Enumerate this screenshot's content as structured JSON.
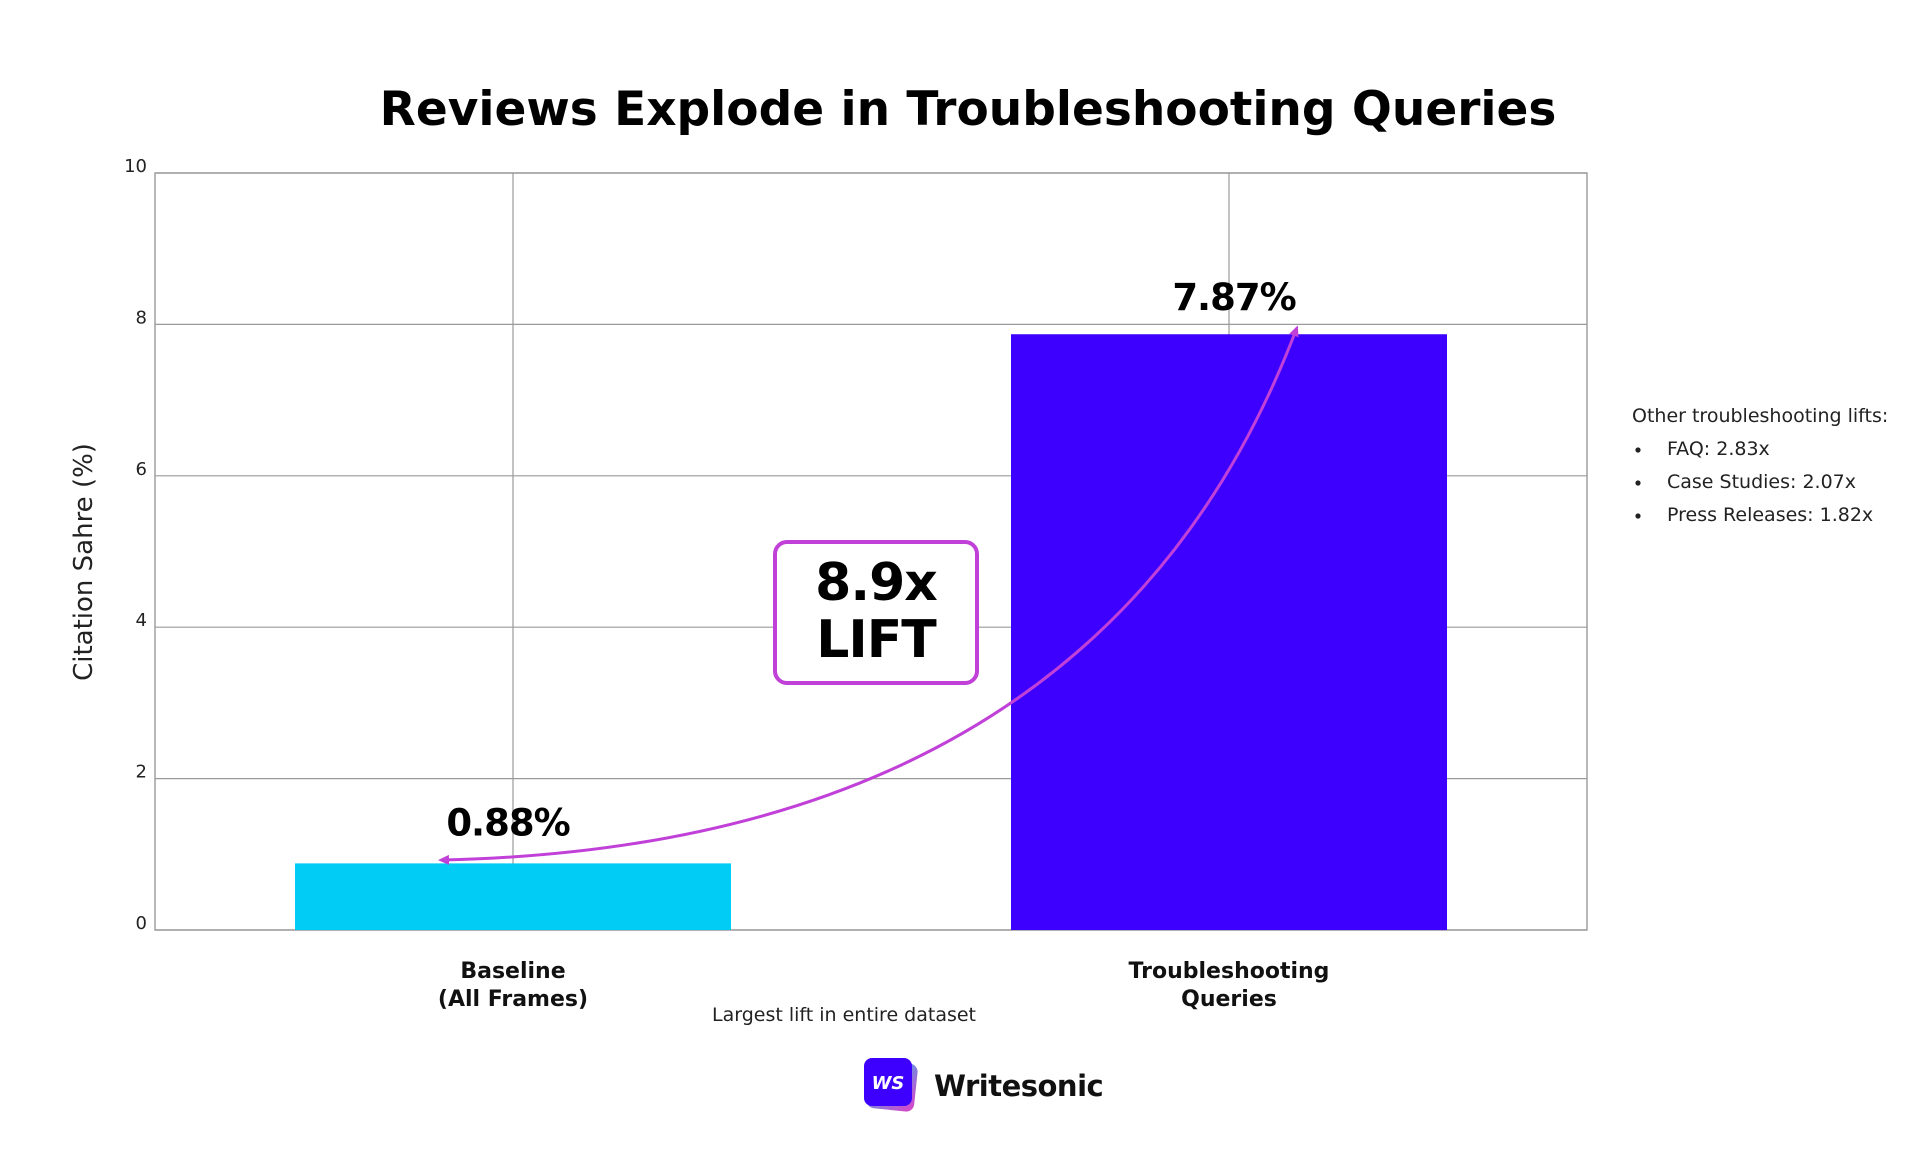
{
  "chart_data": {
    "type": "bar",
    "title": "Reviews Explode in Troubleshooting Queries",
    "ylabel": "Citation Sahre (%)",
    "xlabel": "",
    "ylim": [
      0,
      10
    ],
    "yticks": [
      "0",
      "2",
      "4",
      "6",
      "8",
      "10"
    ],
    "grid": true,
    "categories": [
      [
        "Baseline",
        "(All Frames)"
      ],
      [
        "Troubleshooting",
        "Queries"
      ]
    ],
    "values": [
      0.88,
      7.87
    ],
    "value_labels": [
      "0.88%",
      "7.87%"
    ],
    "colors": [
      "#00CCF5",
      "#3D00FF"
    ],
    "annotation_color": "#C040D8",
    "annotation": {
      "line1": "8.9x",
      "line2": "LIFT"
    },
    "caption": "Largest lift in entire dataset"
  },
  "side_note": {
    "heading": "Other troubleshooting lifts:",
    "items": [
      "FAQ: 2.83x",
      "Case Studies: 2.07x",
      "Press Releases: 1.82x"
    ]
  },
  "brand": {
    "logo_text": "WS",
    "name": "Writesonic"
  }
}
